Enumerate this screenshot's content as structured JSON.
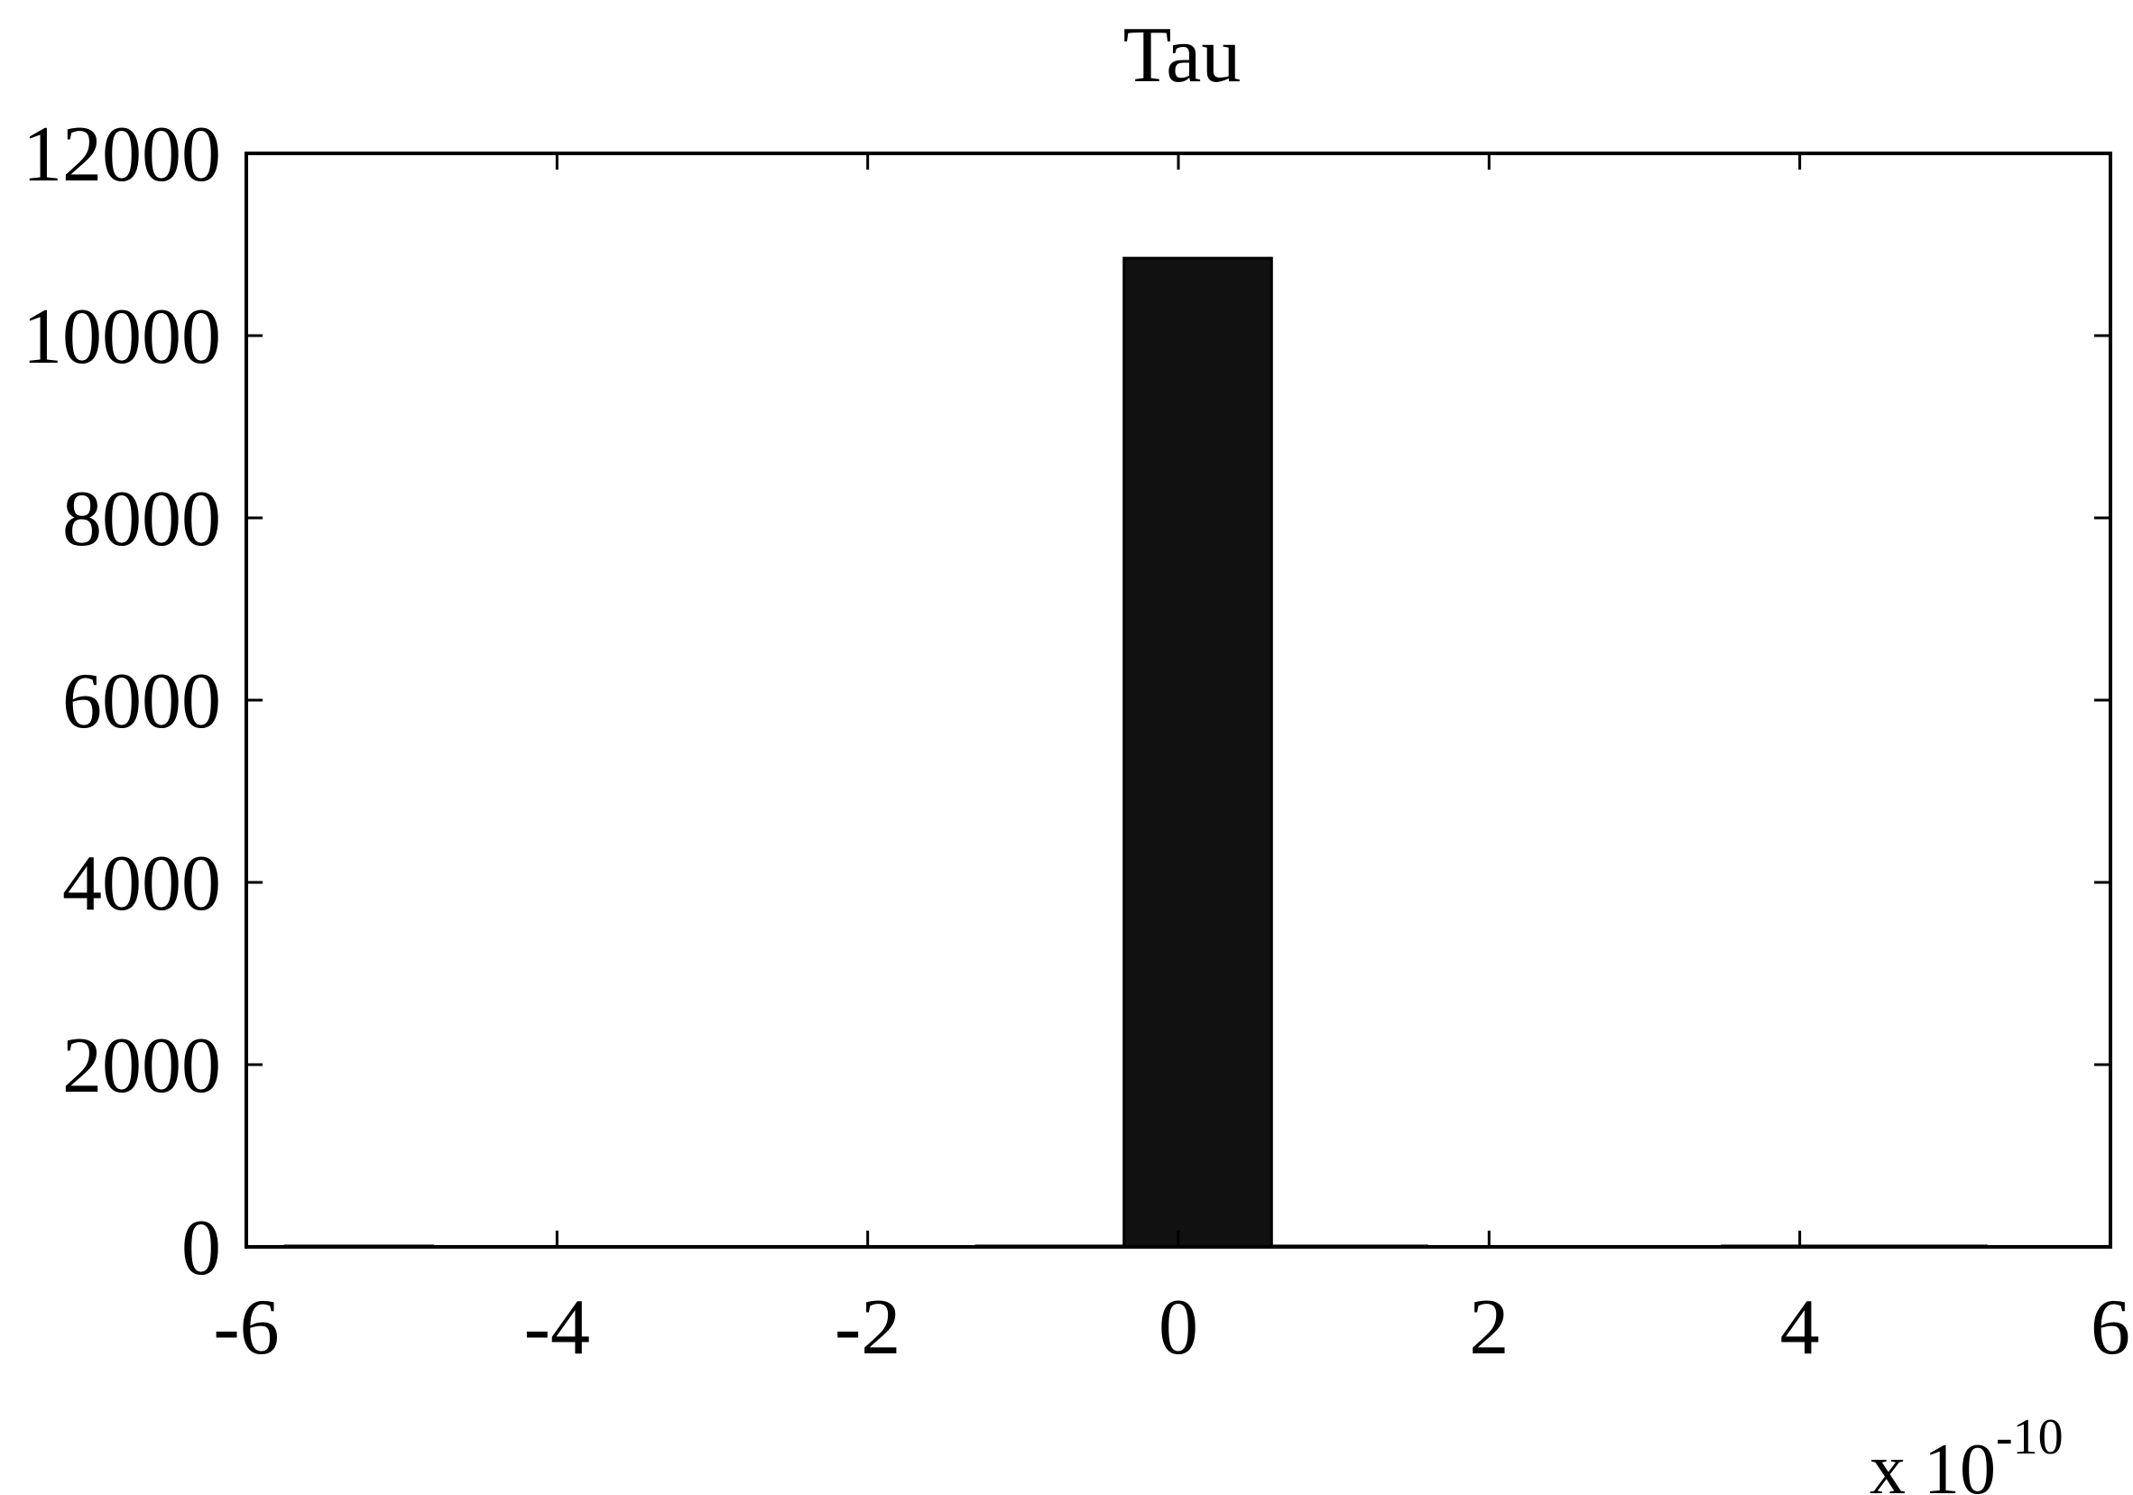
{
  "chart_data": {
    "type": "bar",
    "title": "Tau",
    "xlabel": "",
    "ylabel": "",
    "x_multiplier": {
      "base": "x 10",
      "exponent": "-10"
    },
    "xlim": [
      -6,
      6
    ],
    "ylim": [
      0,
      12000
    ],
    "x_ticks": [
      "-6",
      "-4",
      "-2",
      "0",
      "2",
      "4",
      "6"
    ],
    "y_ticks": [
      "0",
      "2000",
      "4000",
      "6000",
      "8000",
      "10000",
      "12000"
    ],
    "bin_edges": [
      -5.75,
      -4.8,
      -1.3,
      -0.35,
      0.6,
      1.6,
      3.5,
      5.2
    ],
    "counts": [
      10,
      0,
      10,
      10850,
      10,
      0,
      10
    ],
    "bar_color": "#111111",
    "grid": false
  }
}
